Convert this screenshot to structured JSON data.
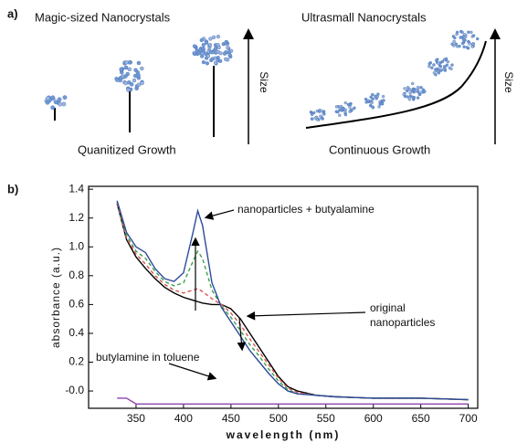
{
  "panel_a": {
    "label": "a)",
    "left": {
      "title": "Magic-sized Nanocrystals",
      "caption": "Quanitized Growth",
      "axis": "Size"
    },
    "right": {
      "title": "Ultrasmall Nanocrystals",
      "caption": "Continuous Growth",
      "axis": "Size"
    }
  },
  "panel_b": {
    "label": "b)"
  },
  "chart_data": {
    "type": "line",
    "x_label": "wavelength (nm)",
    "y_label": "absorbance (a.u.)",
    "x": [
      330,
      340,
      350,
      360,
      370,
      380,
      390,
      400,
      410,
      415,
      420,
      430,
      440,
      450,
      460,
      470,
      480,
      490,
      500,
      510,
      520,
      540,
      560,
      600,
      650,
      700
    ],
    "series": [
      {
        "color": "#000000",
        "dashed": false,
        "values": [
          1.3,
          1.05,
          0.93,
          0.85,
          0.78,
          0.72,
          0.68,
          0.65,
          0.63,
          0.62,
          0.61,
          0.6,
          0.6,
          0.57,
          0.5,
          0.4,
          0.3,
          0.2,
          0.1,
          0.03,
          0.0,
          -0.03,
          -0.04,
          -0.05,
          -0.05,
          -0.06
        ]
      },
      {
        "color": "#d9534f",
        "dashed": true,
        "values": [
          1.3,
          1.06,
          0.95,
          0.88,
          0.8,
          0.74,
          0.7,
          0.68,
          0.7,
          0.71,
          0.69,
          0.64,
          0.6,
          0.54,
          0.46,
          0.36,
          0.27,
          0.18,
          0.09,
          0.02,
          -0.01,
          -0.03,
          -0.04,
          -0.05,
          -0.05,
          -0.06
        ]
      },
      {
        "color": "#3aa04a",
        "dashed": true,
        "values": [
          1.31,
          1.08,
          0.97,
          0.92,
          0.83,
          0.76,
          0.73,
          0.75,
          0.9,
          0.97,
          0.92,
          0.7,
          0.59,
          0.51,
          0.42,
          0.32,
          0.24,
          0.15,
          0.07,
          0.01,
          -0.02,
          -0.03,
          -0.04,
          -0.05,
          -0.05,
          -0.06
        ]
      },
      {
        "color": "#2b4a9a",
        "dashed": false,
        "values": [
          1.32,
          1.1,
          1.0,
          0.96,
          0.85,
          0.78,
          0.76,
          0.82,
          1.1,
          1.25,
          1.15,
          0.75,
          0.58,
          0.48,
          0.38,
          0.28,
          0.2,
          0.12,
          0.05,
          0.0,
          -0.02,
          -0.03,
          -0.04,
          -0.05,
          -0.05,
          -0.06
        ]
      },
      {
        "color": "#8e44ad",
        "dashed": false,
        "values": [
          -0.05,
          -0.05,
          -0.09,
          -0.09,
          -0.09,
          -0.09,
          -0.09,
          -0.09,
          -0.09,
          -0.09,
          -0.09,
          -0.09,
          -0.09,
          -0.09,
          -0.09,
          -0.09,
          -0.09,
          -0.09,
          -0.09,
          -0.09,
          -0.09,
          -0.09,
          -0.09,
          -0.09,
          -0.09,
          -0.09
        ]
      }
    ],
    "annotations": [
      "nanoparticles + butyalamine",
      "original",
      "nanoparticles",
      "butylamine in toluene"
    ],
    "xlim": [
      300,
      710
    ],
    "ylim": [
      -0.12,
      1.42
    ],
    "xticks": [
      350,
      400,
      450,
      500,
      550,
      600,
      650,
      700
    ],
    "yticks": [
      {
        "value": 0,
        "label": "-0.0"
      },
      0.2,
      0.4,
      0.6,
      0.8,
      {
        "value": 1,
        "label": "1.0"
      },
      1.2,
      1.4
    ]
  }
}
